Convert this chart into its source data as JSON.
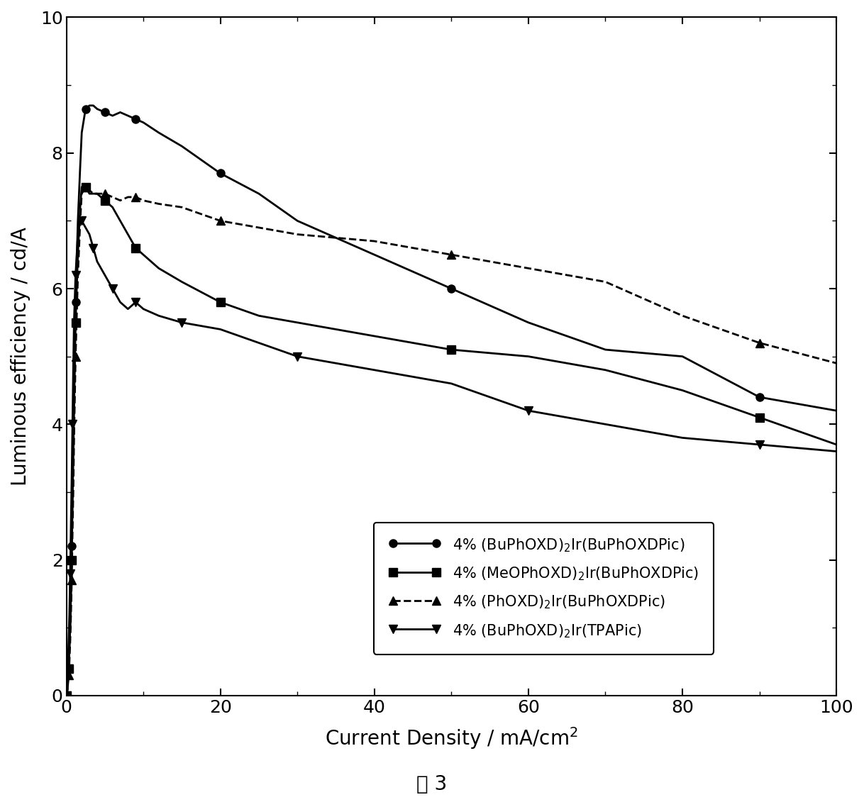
{
  "title": "",
  "xlabel": "Current Density / mA/cm$^2$",
  "ylabel": "Luminous efficiency / cd/A",
  "xlim": [
    0,
    100
  ],
  "ylim": [
    0,
    10
  ],
  "xticks": [
    0,
    20,
    40,
    60,
    80,
    100
  ],
  "yticks": [
    0,
    2,
    4,
    6,
    8,
    10
  ],
  "caption": "图 3",
  "series": [
    {
      "label": "4% (BuPhOXD)$_2$Ir(BuPhOXDPic)",
      "linestyle": "-",
      "marker": "o",
      "color": "#000000",
      "x": [
        0.05,
        0.1,
        0.15,
        0.2,
        0.3,
        0.4,
        0.5,
        0.6,
        0.7,
        0.8,
        0.9,
        1.0,
        1.2,
        1.5,
        1.8,
        2.0,
        2.5,
        3.0,
        3.5,
        4.0,
        5.0,
        6.0,
        7.0,
        8.0,
        9.0,
        10.0,
        12.0,
        15.0,
        20.0,
        25.0,
        30.0,
        40.0,
        50.0,
        60.0,
        70.0,
        80.0,
        90.0,
        100.0
      ],
      "y": [
        0.0,
        0.05,
        0.1,
        0.2,
        0.4,
        0.7,
        1.0,
        1.5,
        2.2,
        3.0,
        3.8,
        4.5,
        5.8,
        7.0,
        7.8,
        8.3,
        8.65,
        8.7,
        8.7,
        8.65,
        8.6,
        8.55,
        8.6,
        8.55,
        8.5,
        8.45,
        8.3,
        8.1,
        7.7,
        7.4,
        7.0,
        6.5,
        6.0,
        5.5,
        5.1,
        5.0,
        4.4,
        4.2
      ]
    },
    {
      "label": "4% (MeOPhOXD)$_2$Ir(BuPhOXDPic)",
      "linestyle": "-",
      "marker": "s",
      "color": "#000000",
      "x": [
        0.05,
        0.1,
        0.15,
        0.2,
        0.3,
        0.4,
        0.5,
        0.6,
        0.7,
        0.8,
        0.9,
        1.0,
        1.2,
        1.5,
        1.8,
        2.0,
        2.5,
        3.0,
        3.5,
        4.0,
        5.0,
        6.0,
        7.0,
        8.0,
        9.0,
        10.0,
        12.0,
        15.0,
        20.0,
        25.0,
        30.0,
        40.0,
        50.0,
        60.0,
        70.0,
        80.0,
        90.0,
        100.0
      ],
      "y": [
        0.0,
        0.05,
        0.1,
        0.2,
        0.4,
        0.7,
        1.0,
        1.5,
        2.0,
        2.8,
        3.5,
        4.2,
        5.5,
        6.5,
        7.2,
        7.5,
        7.5,
        7.4,
        7.4,
        7.4,
        7.3,
        7.2,
        7.0,
        6.8,
        6.6,
        6.5,
        6.3,
        6.1,
        5.8,
        5.6,
        5.5,
        5.3,
        5.1,
        5.0,
        4.8,
        4.5,
        4.1,
        3.7
      ]
    },
    {
      "label": "4% (PhOXD)$_2$Ir(BuPhOXDPic)",
      "linestyle": "--",
      "marker": "^",
      "color": "#000000",
      "x": [
        0.05,
        0.1,
        0.15,
        0.2,
        0.3,
        0.4,
        0.5,
        0.6,
        0.7,
        0.8,
        0.9,
        1.0,
        1.2,
        1.5,
        1.8,
        2.0,
        2.5,
        3.0,
        3.5,
        4.0,
        5.0,
        6.0,
        7.0,
        8.0,
        9.0,
        10.0,
        12.0,
        15.0,
        20.0,
        25.0,
        30.0,
        40.0,
        50.0,
        60.0,
        70.0,
        80.0,
        90.0,
        100.0
      ],
      "y": [
        0.0,
        0.05,
        0.1,
        0.15,
        0.3,
        0.5,
        0.8,
        1.2,
        1.7,
        2.4,
        3.0,
        3.8,
        5.0,
        6.2,
        7.0,
        7.4,
        7.5,
        7.45,
        7.4,
        7.4,
        7.4,
        7.35,
        7.3,
        7.35,
        7.35,
        7.3,
        7.25,
        7.2,
        7.0,
        6.9,
        6.8,
        6.7,
        6.5,
        6.3,
        6.1,
        5.6,
        5.2,
        4.9
      ]
    },
    {
      "label": "4% (BuPhOXD)$_2$Ir(TPAPic)",
      "linestyle": "-",
      "marker": "v",
      "color": "#000000",
      "x": [
        0.05,
        0.1,
        0.15,
        0.2,
        0.3,
        0.4,
        0.5,
        0.6,
        0.7,
        0.8,
        0.9,
        1.0,
        1.2,
        1.5,
        1.8,
        2.0,
        2.5,
        3.0,
        3.5,
        4.0,
        5.0,
        6.0,
        7.0,
        8.0,
        9.0,
        10.0,
        12.0,
        15.0,
        20.0,
        25.0,
        30.0,
        40.0,
        50.0,
        60.0,
        70.0,
        80.0,
        90.0,
        100.0
      ],
      "y": [
        0.0,
        0.1,
        0.2,
        0.4,
        0.8,
        1.2,
        1.8,
        2.5,
        3.2,
        4.0,
        4.8,
        5.5,
        6.2,
        6.8,
        7.0,
        7.0,
        6.9,
        6.8,
        6.6,
        6.4,
        6.2,
        6.0,
        5.8,
        5.7,
        5.8,
        5.7,
        5.6,
        5.5,
        5.4,
        5.2,
        5.0,
        4.8,
        4.6,
        4.2,
        4.0,
        3.8,
        3.7,
        3.6
      ]
    }
  ]
}
